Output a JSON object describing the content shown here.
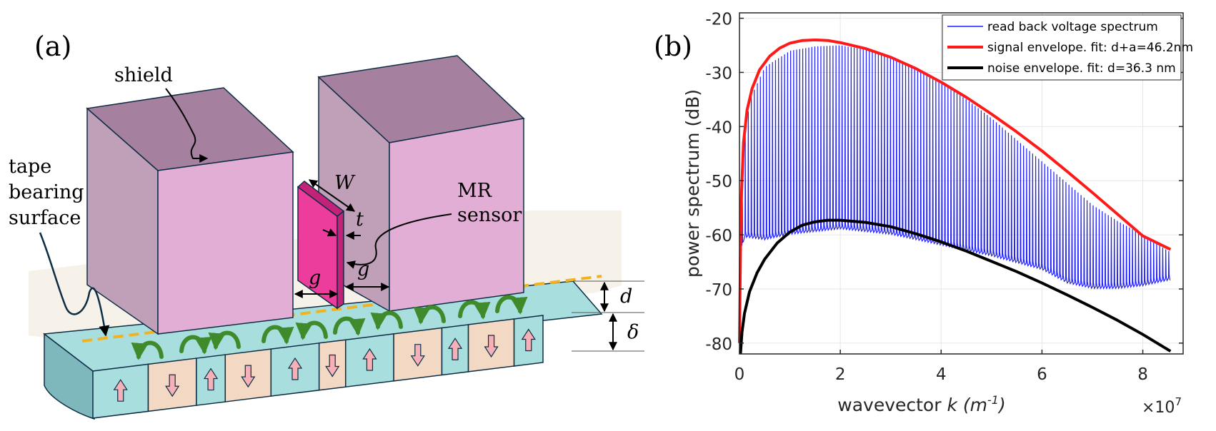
{
  "panel_a": {
    "panel_label": "(a)",
    "labels": {
      "shield": "shield",
      "tape_line1": "tape",
      "tape_line2": "bearing",
      "tape_line3": "surface",
      "width": "W",
      "thickness": "t",
      "sensor_line1": "MR",
      "sensor_line2": "sensor",
      "gap_left": "g",
      "gap_right": "g",
      "spacing": "d",
      "layer": "δ"
    },
    "bits": [
      "up",
      "down",
      "up",
      "down",
      "up",
      "down",
      "up",
      "down",
      "up",
      "down",
      "up"
    ],
    "colors": {
      "shield_front": "#e3aed6",
      "shield_top": "#a5809f",
      "shield_side": "#c0a0b8",
      "sensor": "#ec3c9c",
      "tape": "#a8dede",
      "bit_tan": "#f3d9c4",
      "arrow_fill": "#f6b0b8",
      "flux_green": "#3f8a2a",
      "dash_orange": "#f2b21f"
    }
  },
  "panel_b": {
    "panel_label": "(b)",
    "legend": [
      {
        "label": "read back voltage spectrum",
        "color": "#1f1fff"
      },
      {
        "label": "signal envelope. fit: d+a=46.2nm",
        "color": "#ff1a1a"
      },
      {
        "label": "noise envelope. fit: d=36.3 nm",
        "color": "#000000"
      }
    ],
    "exponent_label": "×10",
    "exponent_power": "7"
  },
  "chart_data": {
    "type": "line",
    "ylabel": "power spectrum (dB)",
    "xlabel_main": "wavevector ",
    "xlabel_var": "k",
    "xlabel_unit": " (m",
    "xlabel_unit_exp": "-1",
    "xlabel_close": ")",
    "xlim": [
      0,
      8.8
    ],
    "ylim": [
      -82,
      -19
    ],
    "x_ticks": [
      0,
      2,
      4,
      6,
      8
    ],
    "y_ticks": [
      -20,
      -30,
      -40,
      -50,
      -60,
      -70,
      -80
    ],
    "x_tick_labels": [
      "0",
      "2",
      "4",
      "6",
      "8"
    ],
    "y_tick_labels": [
      "-20",
      "-30",
      "-40",
      "-50",
      "-60",
      "-70",
      "-80"
    ],
    "x_scale_note": "×10^7",
    "grid": true,
    "legend_position": "top-right",
    "series": [
      {
        "name": "read back voltage spectrum",
        "color": "#1f1fff",
        "style": "comb",
        "x_range": [
          0.05,
          8.55
        ],
        "peak_spacing": 0.06,
        "baseline": [
          [
            0.05,
            -62
          ],
          [
            0.1,
            -60
          ],
          [
            0.5,
            -60.5
          ],
          [
            1.0,
            -59.5
          ],
          [
            2.0,
            -58.5
          ],
          [
            3.0,
            -59.5
          ],
          [
            4.0,
            -61.5
          ],
          [
            5.0,
            -63.5
          ],
          [
            6.0,
            -66
          ],
          [
            6.5,
            -68.5
          ],
          [
            7.0,
            -69.5
          ],
          [
            7.5,
            -69.5
          ],
          [
            8.0,
            -69
          ],
          [
            8.5,
            -68
          ]
        ],
        "peaks": [
          [
            0.05,
            -46
          ],
          [
            0.2,
            -35
          ],
          [
            0.5,
            -29
          ],
          [
            1.0,
            -26
          ],
          [
            1.5,
            -25.2
          ],
          [
            2.0,
            -25
          ],
          [
            2.5,
            -25.8
          ],
          [
            3.0,
            -27
          ],
          [
            3.5,
            -29
          ],
          [
            4.0,
            -32
          ],
          [
            4.5,
            -35
          ],
          [
            5.0,
            -38.5
          ],
          [
            5.5,
            -42.5
          ],
          [
            6.0,
            -46.5
          ],
          [
            6.5,
            -50.5
          ],
          [
            7.0,
            -54.5
          ],
          [
            7.5,
            -57.5
          ],
          [
            8.0,
            -60
          ],
          [
            8.5,
            -63
          ]
        ]
      },
      {
        "name": "signal envelope. fit: d+a=46.2nm",
        "color": "#ff1a1a",
        "style": "line",
        "points": [
          [
            0.0,
            -80
          ],
          [
            0.03,
            -55
          ],
          [
            0.08,
            -43
          ],
          [
            0.15,
            -37
          ],
          [
            0.25,
            -33
          ],
          [
            0.4,
            -29.5
          ],
          [
            0.6,
            -27
          ],
          [
            0.8,
            -25.5
          ],
          [
            1.0,
            -24.6
          ],
          [
            1.25,
            -24.1
          ],
          [
            1.5,
            -24
          ],
          [
            1.75,
            -24.1
          ],
          [
            2.0,
            -24.5
          ],
          [
            2.5,
            -25.6
          ],
          [
            3.0,
            -27.2
          ],
          [
            3.5,
            -29.3
          ],
          [
            4.0,
            -31.8
          ],
          [
            4.5,
            -34.6
          ],
          [
            5.0,
            -37.7
          ],
          [
            5.5,
            -41
          ],
          [
            6.0,
            -44.5
          ],
          [
            6.5,
            -48.3
          ],
          [
            7.0,
            -52.2
          ],
          [
            7.5,
            -56.2
          ],
          [
            8.0,
            -60.2
          ],
          [
            8.55,
            -62.7
          ]
        ]
      },
      {
        "name": "noise envelope. fit: d=36.3 nm",
        "color": "#000000",
        "style": "line",
        "points": [
          [
            0.02,
            -82
          ],
          [
            0.05,
            -78
          ],
          [
            0.1,
            -74.5
          ],
          [
            0.2,
            -70.5
          ],
          [
            0.35,
            -67
          ],
          [
            0.5,
            -64.5
          ],
          [
            0.75,
            -61.5
          ],
          [
            1.0,
            -59.5
          ],
          [
            1.25,
            -58.2
          ],
          [
            1.5,
            -57.6
          ],
          [
            1.75,
            -57.3
          ],
          [
            2.0,
            -57.3
          ],
          [
            2.5,
            -57.7
          ],
          [
            3.0,
            -58.5
          ],
          [
            3.5,
            -59.8
          ],
          [
            4.0,
            -61.3
          ],
          [
            4.5,
            -63
          ],
          [
            5.0,
            -64.9
          ],
          [
            5.5,
            -66.8
          ],
          [
            6.0,
            -68.9
          ],
          [
            6.5,
            -71.1
          ],
          [
            7.0,
            -73.4
          ],
          [
            7.5,
            -75.8
          ],
          [
            8.0,
            -78.4
          ],
          [
            8.55,
            -81.5
          ]
        ]
      }
    ]
  }
}
